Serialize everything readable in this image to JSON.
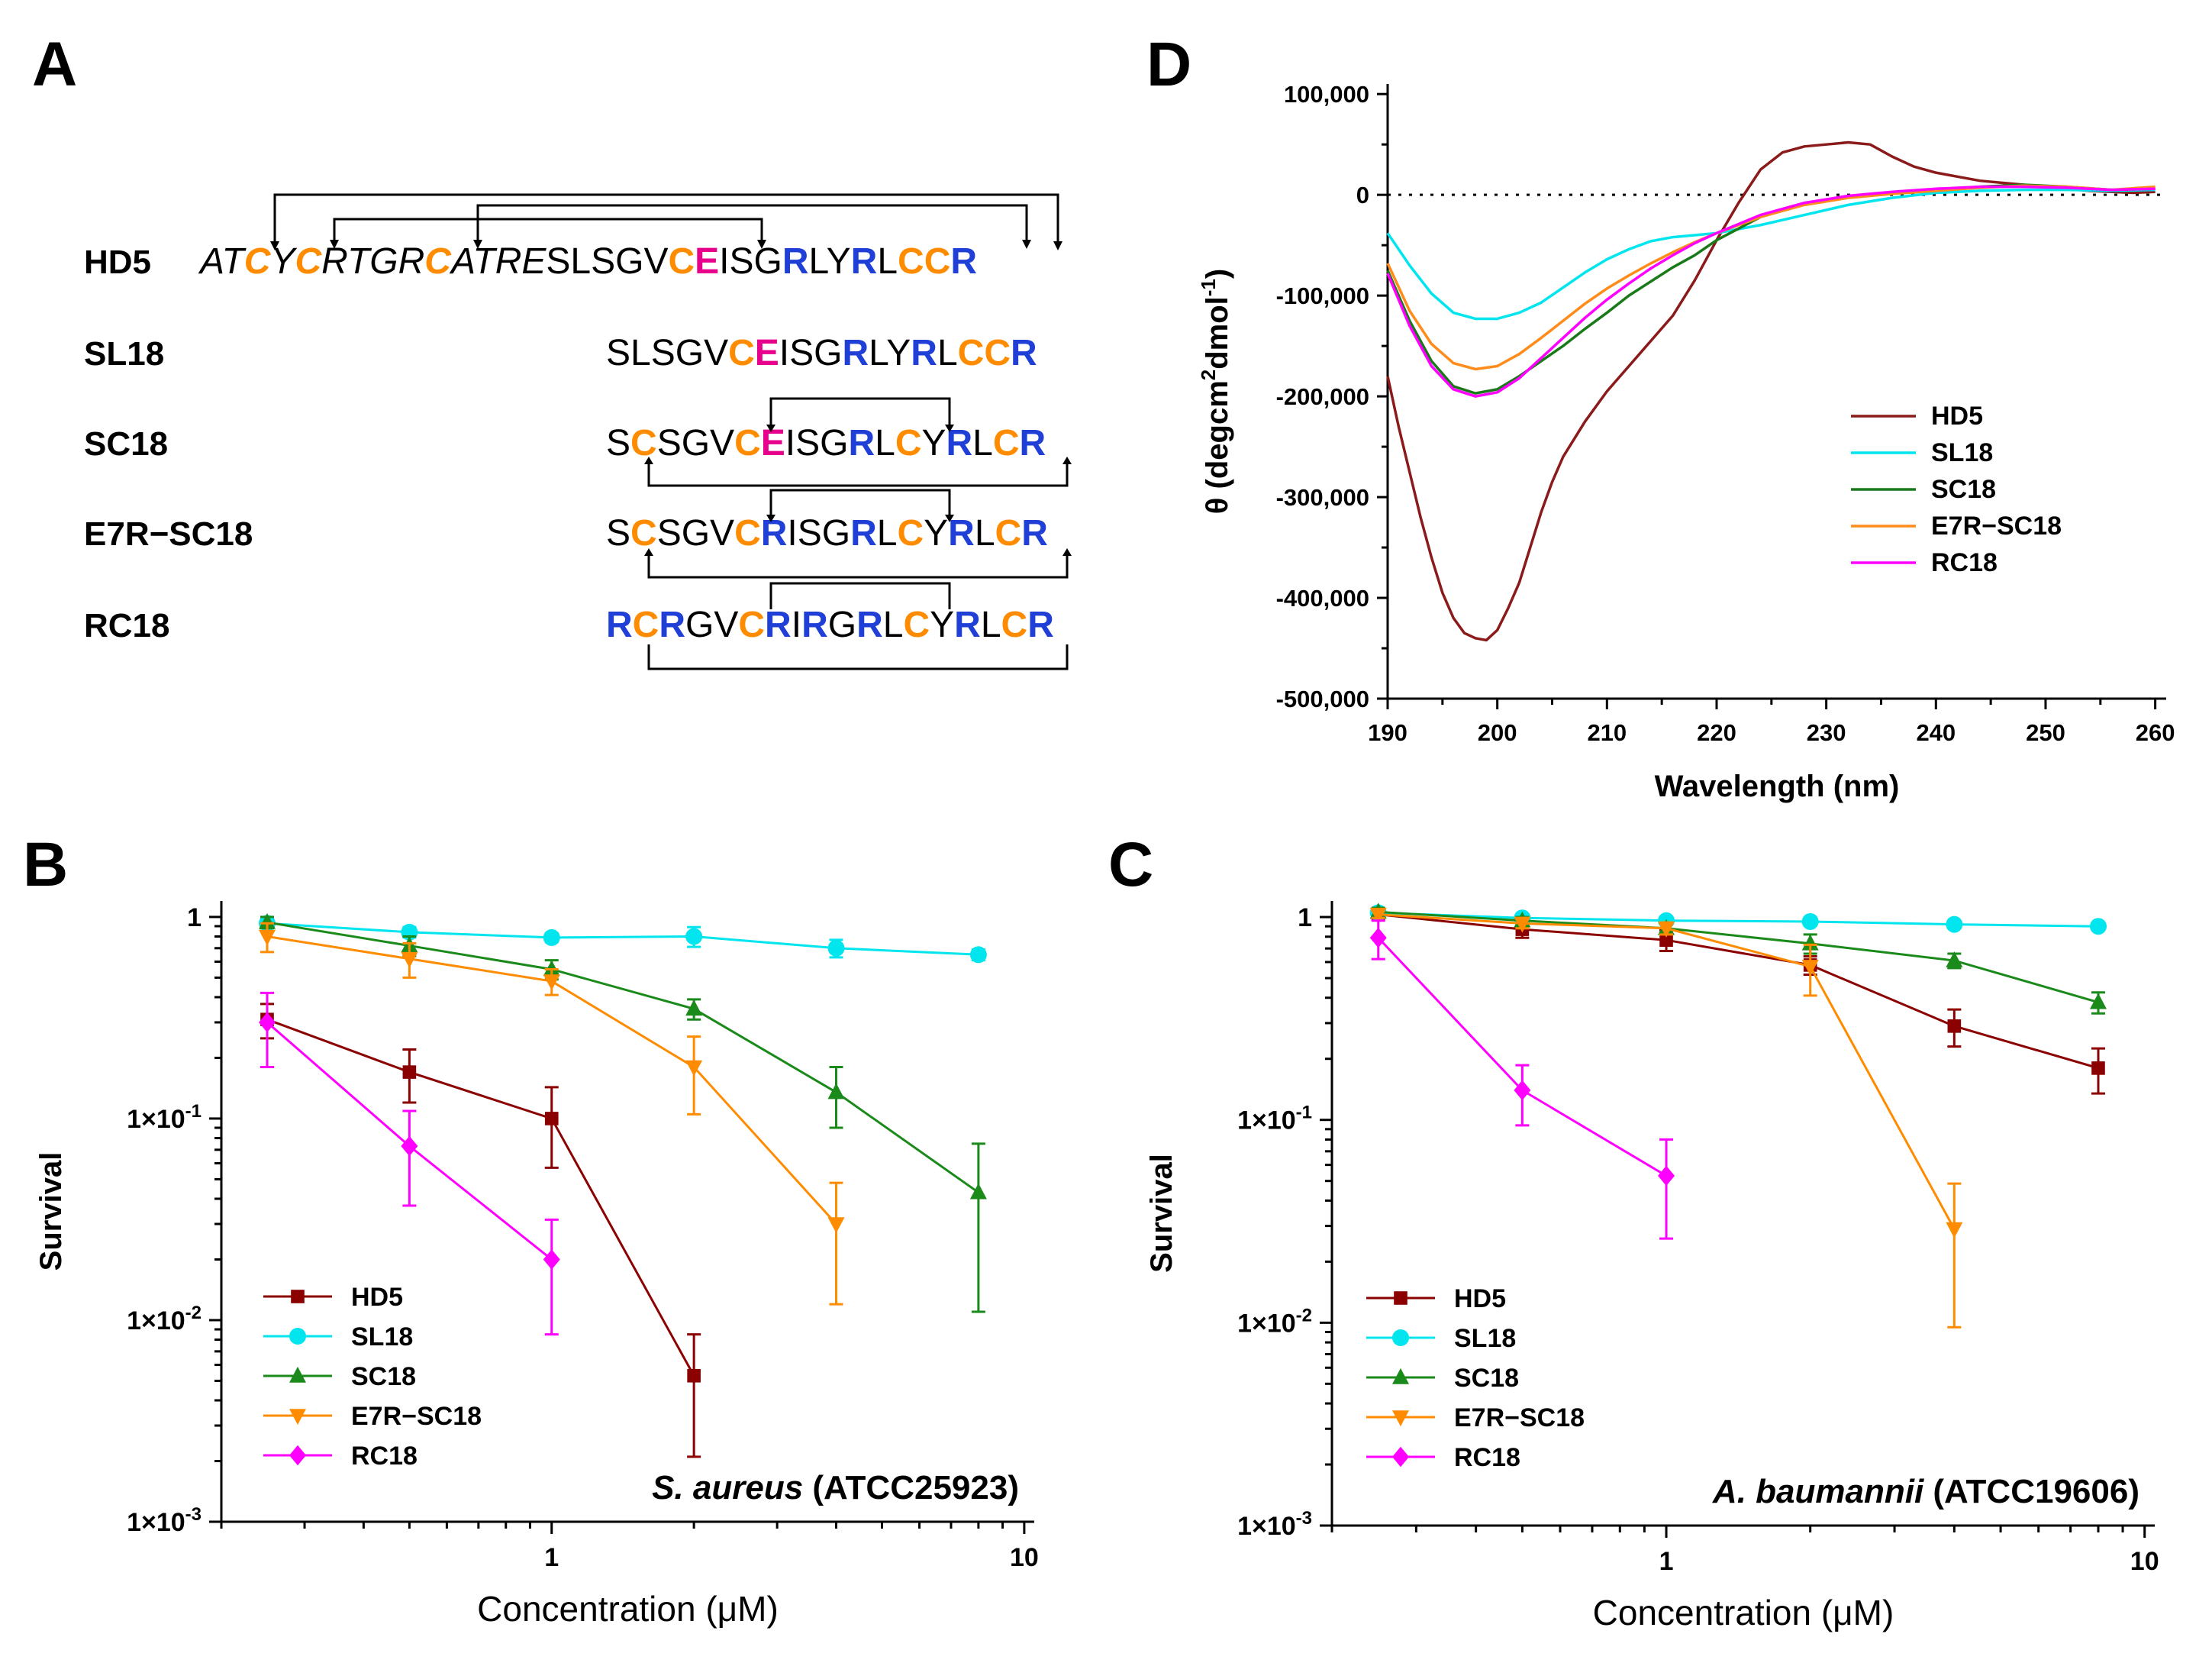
{
  "panel_labels": {
    "a": "A",
    "b": "B",
    "c": "C",
    "d": "D"
  },
  "colors": {
    "orange": "#ff8c00",
    "blue": "#1f3fd6",
    "magenta": "#e6008c",
    "black": "#000000"
  },
  "sequences": [
    {
      "name": "HD5",
      "segments": [
        {
          "t": "AT",
          "c": "black",
          "i": true
        },
        {
          "t": "C",
          "c": "orange",
          "i": true
        },
        {
          "t": "Y",
          "c": "black",
          "i": true
        },
        {
          "t": "C",
          "c": "orange",
          "i": true
        },
        {
          "t": "RTGR",
          "c": "black",
          "i": true
        },
        {
          "t": "C",
          "c": "orange",
          "i": true
        },
        {
          "t": "ATRE",
          "c": "black",
          "i": true
        },
        {
          "t": "SLSGV",
          "c": "black",
          "i": false
        },
        {
          "t": "C",
          "c": "orange",
          "i": false
        },
        {
          "t": "E",
          "c": "magenta",
          "i": false
        },
        {
          "t": "ISG",
          "c": "black",
          "i": false
        },
        {
          "t": "R",
          "c": "blue",
          "i": false
        },
        {
          "t": "LY",
          "c": "black",
          "i": false
        },
        {
          "t": "R",
          "c": "blue",
          "i": false
        },
        {
          "t": "L",
          "c": "black",
          "i": false
        },
        {
          "t": "CC",
          "c": "orange",
          "i": false
        },
        {
          "t": "R",
          "c": "blue",
          "i": false
        }
      ]
    },
    {
      "name": "SL18",
      "segments": [
        {
          "t": "SLSGV",
          "c": "black"
        },
        {
          "t": "C",
          "c": "orange"
        },
        {
          "t": "E",
          "c": "magenta"
        },
        {
          "t": "ISG",
          "c": "black"
        },
        {
          "t": "R",
          "c": "blue"
        },
        {
          "t": "LY",
          "c": "black"
        },
        {
          "t": "R",
          "c": "blue"
        },
        {
          "t": "L",
          "c": "black"
        },
        {
          "t": "CC",
          "c": "orange"
        },
        {
          "t": "R",
          "c": "blue"
        }
      ]
    },
    {
      "name": "SC18",
      "segments": [
        {
          "t": "S",
          "c": "black"
        },
        {
          "t": "C",
          "c": "orange"
        },
        {
          "t": "SGV",
          "c": "black"
        },
        {
          "t": "C",
          "c": "orange"
        },
        {
          "t": "E",
          "c": "magenta"
        },
        {
          "t": "ISG",
          "c": "black"
        },
        {
          "t": "R",
          "c": "blue"
        },
        {
          "t": "L",
          "c": "black"
        },
        {
          "t": "C",
          "c": "orange"
        },
        {
          "t": "Y",
          "c": "black"
        },
        {
          "t": "R",
          "c": "blue"
        },
        {
          "t": "L",
          "c": "black"
        },
        {
          "t": "C",
          "c": "orange"
        },
        {
          "t": "R",
          "c": "blue"
        }
      ]
    },
    {
      "name": "E7R−SC18",
      "segments": [
        {
          "t": "S",
          "c": "black"
        },
        {
          "t": "C",
          "c": "orange"
        },
        {
          "t": "SGV",
          "c": "black"
        },
        {
          "t": "C",
          "c": "orange"
        },
        {
          "t": "R",
          "c": "blue"
        },
        {
          "t": "ISG",
          "c": "black"
        },
        {
          "t": "R",
          "c": "blue"
        },
        {
          "t": "L",
          "c": "black"
        },
        {
          "t": "C",
          "c": "orange"
        },
        {
          "t": "Y",
          "c": "black"
        },
        {
          "t": "R",
          "c": "blue"
        },
        {
          "t": "L",
          "c": "black"
        },
        {
          "t": "C",
          "c": "orange"
        },
        {
          "t": "R",
          "c": "blue"
        }
      ]
    },
    {
      "name": "RC18",
      "segments": [
        {
          "t": "R",
          "c": "blue"
        },
        {
          "t": "C",
          "c": "orange"
        },
        {
          "t": "R",
          "c": "blue"
        },
        {
          "t": "GV",
          "c": "black"
        },
        {
          "t": "C",
          "c": "orange"
        },
        {
          "t": "R",
          "c": "blue"
        },
        {
          "t": "I",
          "c": "black"
        },
        {
          "t": "R",
          "c": "blue"
        },
        {
          "t": "G",
          "c": "black"
        },
        {
          "t": "R",
          "c": "blue"
        },
        {
          "t": "L",
          "c": "black"
        },
        {
          "t": "C",
          "c": "orange"
        },
        {
          "t": "Y",
          "c": "black"
        },
        {
          "t": "R",
          "c": "blue"
        },
        {
          "t": "L",
          "c": "black"
        },
        {
          "t": "C",
          "c": "orange"
        },
        {
          "t": "R",
          "c": "blue"
        }
      ]
    }
  ],
  "chart_data": [
    {
      "panel": "B",
      "type": "line",
      "scale": "log-log",
      "title": "",
      "organism_italic": "S. aureus",
      "organism_strain": "(ATCC25923)",
      "xlabel": "Concentration (μM)",
      "ylabel": "Survival",
      "xlim": [
        0.2,
        10.5
      ],
      "ylim": [
        0.001,
        1.2
      ],
      "xticks": [
        {
          "v": 1,
          "label": "1"
        },
        {
          "v": 10,
          "label": "10"
        }
      ],
      "yticks": [
        {
          "v": 1,
          "label": "1",
          "sup": ""
        },
        {
          "v": 0.1,
          "label": "1×10",
          "sup": "-1"
        },
        {
          "v": 0.01,
          "label": "1×10",
          "sup": "-2"
        },
        {
          "v": 0.001,
          "label": "1×10",
          "sup": "-3"
        }
      ],
      "legend_position": "bottom-left",
      "series": [
        {
          "name": "HD5",
          "color": "#8b0000",
          "marker": "square",
          "x": [
            0.25,
            0.5,
            1,
            2
          ],
          "y": [
            0.31,
            0.17,
            0.1,
            0.0053
          ],
          "err": [
            0.06,
            0.05,
            0.043,
            0.0032
          ]
        },
        {
          "name": "SL18",
          "color": "#00e5ee",
          "marker": "circle",
          "x": [
            0.25,
            0.5,
            1,
            2,
            4,
            8
          ],
          "y": [
            0.93,
            0.84,
            0.79,
            0.8,
            0.7,
            0.65
          ],
          "err": [
            0.05,
            0.05,
            0.04,
            0.09,
            0.07,
            0.04
          ]
        },
        {
          "name": "SC18",
          "color": "#1a8a1a",
          "marker": "triangle-up",
          "x": [
            0.25,
            0.5,
            1,
            2,
            4,
            8
          ],
          "y": [
            0.94,
            0.72,
            0.55,
            0.35,
            0.135,
            0.043
          ],
          "err": [
            0.06,
            0.08,
            0.06,
            0.04,
            0.045,
            0.032
          ]
        },
        {
          "name": "E7R−SC18",
          "color": "#ff8c00",
          "marker": "triangle-down",
          "x": [
            0.25,
            0.5,
            1,
            2,
            4
          ],
          "y": [
            0.8,
            0.62,
            0.48,
            0.18,
            0.03
          ],
          "err": [
            0.13,
            0.12,
            0.07,
            0.075,
            0.018
          ]
        },
        {
          "name": "RC18",
          "color": "#ff00ff",
          "marker": "diamond",
          "x": [
            0.25,
            0.5,
            1
          ],
          "y": [
            0.3,
            0.073,
            0.02
          ],
          "err": [
            0.12,
            0.036,
            0.0115
          ]
        }
      ]
    },
    {
      "panel": "C",
      "type": "line",
      "scale": "log-log",
      "title": "",
      "organism_italic": "A. baumannii",
      "organism_strain": "(ATCC19606)",
      "xlabel": "Concentration (μM)",
      "ylabel": "Survival",
      "xlim": [
        0.2,
        10.5
      ],
      "ylim": [
        0.001,
        1.2
      ],
      "xticks": [
        {
          "v": 1,
          "label": "1"
        },
        {
          "v": 10,
          "label": "10"
        }
      ],
      "yticks": [
        {
          "v": 1,
          "label": "1",
          "sup": ""
        },
        {
          "v": 0.1,
          "label": "1×10",
          "sup": "-1"
        },
        {
          "v": 0.01,
          "label": "1×10",
          "sup": "-2"
        },
        {
          "v": 0.001,
          "label": "1×10",
          "sup": "-3"
        }
      ],
      "legend_position": "bottom-left",
      "series": [
        {
          "name": "HD5",
          "color": "#8b0000",
          "marker": "square",
          "x": [
            0.25,
            0.5,
            1,
            2,
            4,
            8
          ],
          "y": [
            1.03,
            0.87,
            0.77,
            0.58,
            0.29,
            0.18
          ],
          "err": [
            0.05,
            0.08,
            0.09,
            0.06,
            0.06,
            0.045
          ]
        },
        {
          "name": "SL18",
          "color": "#00e5ee",
          "marker": "circle",
          "x": [
            0.25,
            0.5,
            1,
            2,
            4,
            8
          ],
          "y": [
            1.05,
            0.99,
            0.96,
            0.95,
            0.92,
            0.9
          ],
          "err": [
            0.04,
            0.03,
            0.03,
            0.03,
            0.03,
            0.03
          ]
        },
        {
          "name": "SC18",
          "color": "#1a8a1a",
          "marker": "triangle-up",
          "x": [
            0.25,
            0.5,
            1,
            2,
            4,
            8
          ],
          "y": [
            1.06,
            0.96,
            0.88,
            0.74,
            0.61,
            0.38
          ],
          "err": [
            0.05,
            0.04,
            0.05,
            0.08,
            0.05,
            0.045
          ]
        },
        {
          "name": "E7R−SC18",
          "color": "#ff8c00",
          "marker": "triangle-down",
          "x": [
            0.25,
            0.5,
            1,
            2,
            4
          ],
          "y": [
            1.03,
            0.93,
            0.88,
            0.57,
            0.029
          ],
          "err": [
            0.04,
            0.05,
            0.06,
            0.16,
            0.0195
          ]
        },
        {
          "name": "RC18",
          "color": "#ff00ff",
          "marker": "diamond",
          "x": [
            0.25,
            0.5,
            1
          ],
          "y": [
            0.79,
            0.14,
            0.053
          ],
          "err": [
            0.17,
            0.046,
            0.027
          ]
        }
      ]
    },
    {
      "panel": "D",
      "type": "line",
      "scale": "linear",
      "title": "",
      "xlabel": "Wavelength (nm)",
      "ylabel_main": "θ (degcm",
      "ylabel_sup1": "2",
      "ylabel_mid": "dmol",
      "ylabel_sup2": "-1",
      "ylabel_end": ")",
      "xlim": [
        190,
        261
      ],
      "ylim": [
        -500000,
        110000
      ],
      "xticks": [
        {
          "v": 190,
          "label": "190"
        },
        {
          "v": 200,
          "label": "200"
        },
        {
          "v": 210,
          "label": "210"
        },
        {
          "v": 220,
          "label": "220"
        },
        {
          "v": 230,
          "label": "230"
        },
        {
          "v": 240,
          "label": "240"
        },
        {
          "v": 250,
          "label": "250"
        },
        {
          "v": 260,
          "label": "260"
        }
      ],
      "yticks": [
        {
          "v": 100000,
          "label": "100,000"
        },
        {
          "v": 0,
          "label": "0"
        },
        {
          "v": -100000,
          "label": "-100,000"
        },
        {
          "v": -200000,
          "label": "-200,000"
        },
        {
          "v": -300000,
          "label": "-300,000"
        },
        {
          "v": -400000,
          "label": "-400,000"
        },
        {
          "v": -500000,
          "label": "-500,000"
        }
      ],
      "zero_line": "dotted",
      "legend_position": "center-right",
      "series": [
        {
          "name": "HD5",
          "color": "#8b1a1a",
          "x": [
            190,
            191,
            192,
            193,
            194,
            195,
            196,
            197,
            198,
            199,
            200,
            201,
            202,
            203,
            204,
            205,
            206,
            208,
            210,
            212,
            214,
            216,
            218,
            220,
            222,
            224,
            226,
            228,
            230,
            232,
            234,
            236,
            238,
            240,
            242,
            244,
            246,
            248,
            250,
            252,
            254,
            256,
            258,
            260
          ],
          "y": [
            -180000,
            -230000,
            -275000,
            -320000,
            -360000,
            -395000,
            -420000,
            -435000,
            -440000,
            -442000,
            -432000,
            -410000,
            -385000,
            -350000,
            -315000,
            -285000,
            -260000,
            -225000,
            -195000,
            -170000,
            -145000,
            -120000,
            -85000,
            -45000,
            -8000,
            25000,
            42000,
            48000,
            50000,
            52000,
            50000,
            38000,
            28000,
            22000,
            18000,
            14000,
            12000,
            10000,
            8000,
            6000,
            4000,
            3000,
            2000,
            3000
          ]
        },
        {
          "name": "SL18",
          "color": "#00e5ee",
          "x": [
            190,
            192,
            194,
            196,
            198,
            200,
            202,
            204,
            206,
            208,
            210,
            212,
            214,
            216,
            218,
            220,
            224,
            228,
            232,
            236,
            240,
            244,
            248,
            252,
            256,
            260
          ],
          "y": [
            -38000,
            -70000,
            -98000,
            -117000,
            -123000,
            -123000,
            -117000,
            -107000,
            -92000,
            -77000,
            -64000,
            -54000,
            -46000,
            -42000,
            -40000,
            -38000,
            -30000,
            -20000,
            -10000,
            -3000,
            2000,
            4000,
            5000,
            5000,
            4000,
            5000
          ]
        },
        {
          "name": "SC18",
          "color": "#1a7a1a",
          "x": [
            190,
            192,
            194,
            196,
            198,
            200,
            202,
            204,
            206,
            208,
            210,
            212,
            214,
            216,
            218,
            220,
            224,
            228,
            232,
            236,
            240,
            244,
            248,
            252,
            256,
            260
          ],
          "y": [
            -75000,
            -125000,
            -165000,
            -190000,
            -197000,
            -193000,
            -180000,
            -165000,
            -150000,
            -133000,
            -117000,
            -100000,
            -86000,
            -72000,
            -60000,
            -45000,
            -22000,
            -8000,
            -2000,
            2000,
            5000,
            8000,
            10000,
            8000,
            5000,
            6000
          ]
        },
        {
          "name": "E7R−SC18",
          "color": "#ff8c1a",
          "x": [
            190,
            192,
            194,
            196,
            198,
            200,
            202,
            204,
            206,
            208,
            210,
            212,
            214,
            216,
            218,
            220,
            224,
            228,
            232,
            236,
            240,
            244,
            248,
            252,
            256,
            260
          ],
          "y": [
            -68000,
            -115000,
            -148000,
            -167000,
            -173000,
            -170000,
            -158000,
            -142000,
            -125000,
            -108000,
            -93000,
            -80000,
            -68000,
            -57000,
            -47000,
            -38000,
            -22000,
            -10000,
            -3000,
            1000,
            4000,
            7000,
            9000,
            8000,
            5000,
            8000
          ]
        },
        {
          "name": "RC18",
          "color": "#ff00ff",
          "x": [
            190,
            192,
            194,
            196,
            198,
            200,
            202,
            204,
            206,
            208,
            210,
            212,
            214,
            216,
            218,
            220,
            224,
            228,
            232,
            236,
            240,
            244,
            248,
            252,
            256,
            260
          ],
          "y": [
            -78000,
            -130000,
            -170000,
            -193000,
            -200000,
            -196000,
            -182000,
            -162000,
            -142000,
            -122000,
            -104000,
            -88000,
            -73000,
            -60000,
            -48000,
            -38000,
            -20000,
            -8000,
            -1000,
            3000,
            6000,
            8000,
            8000,
            7000,
            5000,
            6000
          ]
        }
      ]
    }
  ]
}
